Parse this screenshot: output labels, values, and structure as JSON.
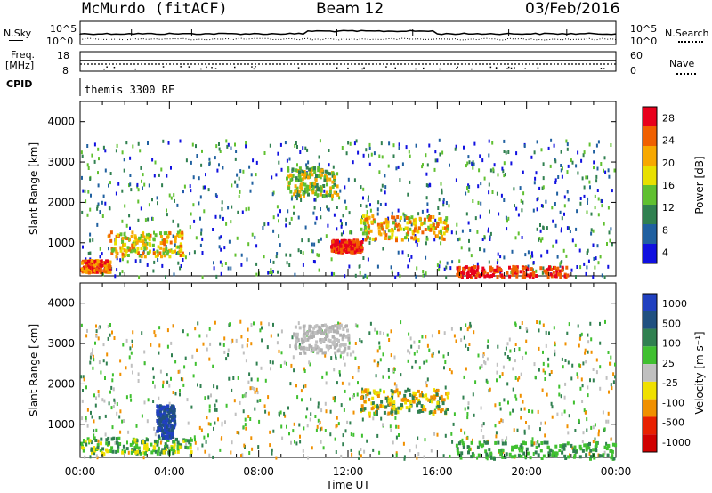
{
  "header": {
    "site": "McMurdo (fitACF)",
    "beam": "Beam 12",
    "date": "03/Feb/2016"
  },
  "noise_panel": {
    "left_label": "N.Sky",
    "right_label": "N.Search",
    "tick_top": "10^5",
    "tick_bottom": "10^0"
  },
  "freq_panel": {
    "left_label_1": "Freq.",
    "left_label_2": "[MHz]",
    "right_label": "Nave",
    "left_ticks": [
      "18",
      "8"
    ],
    "right_ticks": [
      "60",
      "0"
    ]
  },
  "cpid": {
    "label": "CPID",
    "value": "themis 3300 RF"
  },
  "power_panel": {
    "ylabel": "Slant Range [km]",
    "yticks": [
      "4000",
      "3000",
      "2000",
      "1000"
    ],
    "colorbar_label": "Power [dB]",
    "colorbar_ticks": [
      "28",
      "24",
      "20",
      "16",
      "12",
      "8",
      "4"
    ],
    "colorbar_colors": [
      "#e8001c",
      "#f06000",
      "#f7a800",
      "#e8e000",
      "#60c030",
      "#308050",
      "#2060a0",
      "#1010e0"
    ]
  },
  "velocity_panel": {
    "ylabel": "Slant Range [km]",
    "yticks": [
      "4000",
      "3000",
      "2000",
      "1000"
    ],
    "colorbar_label": "Velocity [m s⁻¹]",
    "colorbar_ticks": [
      "1000",
      "500",
      "100",
      "25",
      "-25",
      "-100",
      "-500",
      "-1000"
    ],
    "colorbar_colors": [
      "#2040c0",
      "#205080",
      "#308050",
      "#40c030",
      "#c0c0c0",
      "#f0e000",
      "#f09000",
      "#e82000",
      "#d00000"
    ]
  },
  "xaxis": {
    "label": "Time UT",
    "ticks": [
      "00:00",
      "04:00",
      "08:00",
      "12:00",
      "16:00",
      "20:00",
      "00:00"
    ]
  },
  "chart_data": [
    {
      "type": "heatmap",
      "title": "Beam 12",
      "xlabel": "Time UT",
      "ylabel": "Slant Range [km]",
      "xlim": [
        0,
        24
      ],
      "ylim": [
        180,
        4500
      ],
      "colorbar": {
        "label": "Power [dB]",
        "range": [
          0,
          30
        ]
      },
      "x": [
        "00:00",
        "04:00",
        "08:00",
        "12:00",
        "16:00",
        "20:00",
        "00:00"
      ],
      "regions": [
        {
          "t_start": 0.0,
          "t_end": 1.3,
          "range_start": 300,
          "range_end": 600,
          "level": "high"
        },
        {
          "t_start": 16.8,
          "t_end": 21.8,
          "range_start": 180,
          "range_end": 450,
          "level": "high"
        },
        {
          "t_start": 11.2,
          "t_end": 12.6,
          "range_start": 800,
          "range_end": 1100,
          "level": "high"
        },
        {
          "t_start": 12.5,
          "t_end": 16.5,
          "range_start": 1100,
          "range_end": 1700,
          "level": "medium"
        },
        {
          "t_start": 9.2,
          "t_end": 11.5,
          "range_start": 2200,
          "range_end": 2900,
          "level": "medium"
        },
        {
          "t_start": 1.2,
          "t_end": 4.6,
          "range_start": 700,
          "range_end": 1300,
          "level": "medium"
        }
      ]
    },
    {
      "type": "heatmap",
      "title": "Beam 12",
      "xlabel": "Time UT",
      "ylabel": "Slant Range [km]",
      "xlim": [
        0,
        24
      ],
      "ylim": [
        180,
        4500
      ],
      "colorbar": {
        "label": "Velocity [m s⁻¹]",
        "range": [
          -1000,
          1000
        ]
      },
      "x": [
        "00:00",
        "04:00",
        "08:00",
        "12:00",
        "16:00",
        "20:00",
        "00:00"
      ],
      "regions": [
        {
          "t_start": 9.5,
          "t_end": 12.0,
          "range_start": 2800,
          "range_end": 3500,
          "level": "low-velocity"
        },
        {
          "t_start": 12.5,
          "t_end": 16.5,
          "range_start": 1300,
          "range_end": 1900,
          "level": "positive-medium"
        },
        {
          "t_start": 0.0,
          "t_end": 5.0,
          "range_start": 300,
          "range_end": 700,
          "level": "positive-low"
        },
        {
          "t_start": 3.4,
          "t_end": 4.2,
          "range_start": 700,
          "range_end": 1500,
          "level": "positive-high"
        },
        {
          "t_start": 16.8,
          "t_end": 24.0,
          "range_start": 180,
          "range_end": 600,
          "level": "positive-low"
        }
      ]
    }
  ]
}
